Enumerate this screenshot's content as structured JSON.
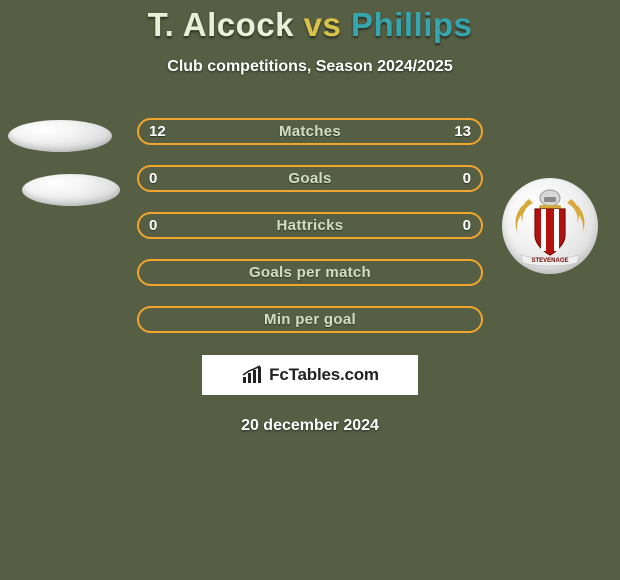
{
  "background_color": "#565e43",
  "title": {
    "prefix": "T. Alcock",
    "vs": " vs ",
    "suffix": "Phillips",
    "prefix_color": "#e6f0da",
    "vs_color": "#d9c24a",
    "suffix_color": "#35a6b0",
    "fontsize": 33
  },
  "subtitle": "Club competitions, Season 2024/2025",
  "bars": {
    "bg_color": "#565e43",
    "border_color": "#f0a52e",
    "label_color": "#cfe0bf",
    "rows": [
      {
        "label": "Matches",
        "left": "12",
        "right": "13"
      },
      {
        "label": "Goals",
        "left": "0",
        "right": "0"
      },
      {
        "label": "Hattricks",
        "left": "0",
        "right": "0"
      },
      {
        "label": "Goals per match",
        "left": "",
        "right": ""
      },
      {
        "label": "Min per goal",
        "left": "",
        "right": ""
      }
    ]
  },
  "ellipse_color": "#e8e8e8",
  "crest": {
    "shield_color": "#b5120f",
    "stripe_color": "#ffffff",
    "helmet_color": "#d8d8d8",
    "mantling_color": "#d7a93b",
    "scroll_text": "STEVENAGE",
    "scroll_bg": "#f0f0f0"
  },
  "brand": {
    "icon_color": "#222222",
    "text": "FcTables.com"
  },
  "date": "20 december 2024"
}
